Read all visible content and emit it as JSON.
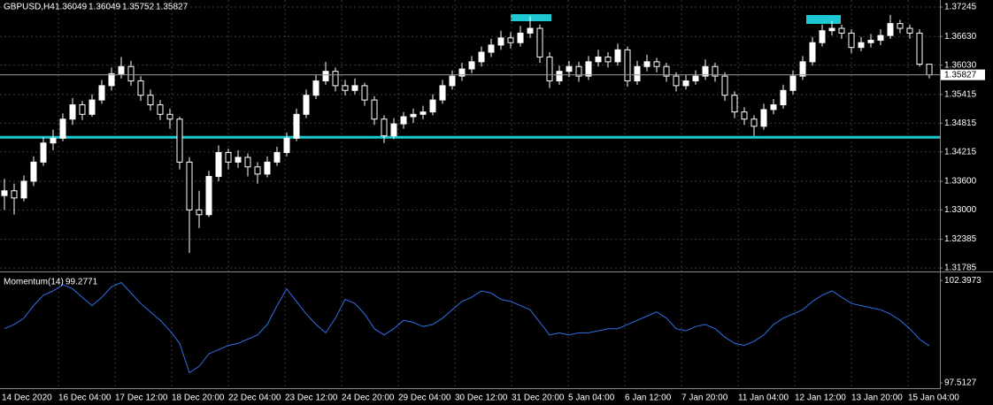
{
  "chart_data": [
    {
      "type": "candlestick",
      "title": "GBPUSD,H4",
      "bull_color": "#ffffff",
      "bear_color": "#000000",
      "wick_color": "#ffffff",
      "level_color": "#1ec8d2",
      "levels": [
        1.3452
      ],
      "ylim": [
        1.3173,
        1.37393
      ],
      "yticks": [
        1.37245,
        {
          "value": 1.3663,
          "label": "1.36630"
        },
        {
          "value": 1.3603,
          "label": "1.36030"
        },
        1.35415,
        1.34815,
        1.34215,
        {
          "value": 1.336,
          "label": "1.33600"
        },
        {
          "value": 1.33,
          "label": "1.33000"
        },
        1.32385,
        1.31785
      ],
      "grid": true,
      "xtick_labels": [
        "14 Dec 2020",
        "16 Dec 04:00",
        "17 Dec 12:00",
        "18 Dec 20:00",
        "22 Dec 04:00",
        "23 Dec 12:00",
        "24 Dec 20:00",
        "29 Dec 04:00",
        "30 Dec 12:00",
        "31 Dec 20:00",
        "5 Jan 04:00",
        "6 Jan 12:00",
        "7 Jan 20:00",
        "11 Jan 04:00",
        "12 Jan 12:00",
        "13 Jan 20:00",
        "15 Jan 04:00"
      ],
      "ohlc": [
        [
          1.333,
          1.3365,
          1.33,
          1.334
        ],
        [
          1.334,
          1.3355,
          1.329,
          1.3325
        ],
        [
          1.3325,
          1.3372,
          1.3318,
          1.336
        ],
        [
          1.336,
          1.3412,
          1.335,
          1.34
        ],
        [
          1.34,
          1.3452,
          1.3392,
          1.344
        ],
        [
          1.344,
          1.3468,
          1.3425,
          1.345
        ],
        [
          1.345,
          1.3502,
          1.3444,
          1.349
        ],
        [
          1.349,
          1.3534,
          1.3478,
          1.352
        ],
        [
          1.352,
          1.3528,
          1.3488,
          1.35
        ],
        [
          1.35,
          1.3542,
          1.3495,
          1.353
        ],
        [
          1.353,
          1.3572,
          1.3522,
          1.356
        ],
        [
          1.356,
          1.3598,
          1.355,
          1.3585
        ],
        [
          1.3585,
          1.362,
          1.3575,
          1.36
        ],
        [
          1.36,
          1.3612,
          1.356,
          1.357
        ],
        [
          1.357,
          1.358,
          1.3528,
          1.354
        ],
        [
          1.354,
          1.3552,
          1.3508,
          1.352
        ],
        [
          1.352,
          1.353,
          1.3488,
          1.35
        ],
        [
          1.35,
          1.3512,
          1.347,
          1.349
        ],
        [
          1.349,
          1.3495,
          1.3385,
          1.34
        ],
        [
          1.34,
          1.341,
          1.321,
          1.33
        ],
        [
          1.33,
          1.334,
          1.3262,
          1.329
        ],
        [
          1.329,
          1.3382,
          1.3285,
          1.337
        ],
        [
          1.337,
          1.3435,
          1.336,
          1.342
        ],
        [
          1.342,
          1.3428,
          1.3385,
          1.34
        ],
        [
          1.34,
          1.3425,
          1.3388,
          1.341
        ],
        [
          1.341,
          1.3418,
          1.337,
          1.339
        ],
        [
          1.339,
          1.34,
          1.3355,
          1.3375
        ],
        [
          1.3375,
          1.3412,
          1.3368,
          1.34
        ],
        [
          1.34,
          1.3432,
          1.3392,
          1.342
        ],
        [
          1.342,
          1.3462,
          1.3412,
          1.345
        ],
        [
          1.345,
          1.3512,
          1.3444,
          1.35
        ],
        [
          1.35,
          1.3552,
          1.3492,
          1.354
        ],
        [
          1.354,
          1.3582,
          1.3532,
          1.357
        ],
        [
          1.357,
          1.361,
          1.3562,
          1.359
        ],
        [
          1.359,
          1.3598,
          1.3548,
          1.356
        ],
        [
          1.356,
          1.3572,
          1.354,
          1.355
        ],
        [
          1.355,
          1.3575,
          1.3542,
          1.356
        ],
        [
          1.356,
          1.3566,
          1.3518,
          1.353
        ],
        [
          1.353,
          1.3538,
          1.3478,
          1.349
        ],
        [
          1.349,
          1.3498,
          1.344,
          1.3455
        ],
        [
          1.3455,
          1.3492,
          1.3448,
          1.348
        ],
        [
          1.348,
          1.3505,
          1.347,
          1.3495
        ],
        [
          1.3495,
          1.3512,
          1.3482,
          1.35
        ],
        [
          1.35,
          1.3518,
          1.349,
          1.3505
        ],
        [
          1.3505,
          1.3542,
          1.3498,
          1.353
        ],
        [
          1.353,
          1.3572,
          1.3522,
          1.356
        ],
        [
          1.356,
          1.3592,
          1.3552,
          1.358
        ],
        [
          1.358,
          1.3608,
          1.357,
          1.3595
        ],
        [
          1.3595,
          1.3622,
          1.3586,
          1.361
        ],
        [
          1.361,
          1.3642,
          1.36,
          1.363
        ],
        [
          1.363,
          1.3658,
          1.362,
          1.3645
        ],
        [
          1.3645,
          1.3675,
          1.3635,
          1.366
        ],
        [
          1.366,
          1.3672,
          1.3638,
          1.365
        ],
        [
          1.365,
          1.3685,
          1.3642,
          1.367
        ],
        [
          1.367,
          1.3705,
          1.366,
          1.368
        ],
        [
          1.368,
          1.3688,
          1.3608,
          1.362
        ],
        [
          1.362,
          1.363,
          1.3555,
          1.357
        ],
        [
          1.357,
          1.3602,
          1.3562,
          1.359
        ],
        [
          1.359,
          1.3612,
          1.3578,
          1.36
        ],
        [
          1.36,
          1.361,
          1.3568,
          1.358
        ],
        [
          1.358,
          1.3622,
          1.3572,
          1.361
        ],
        [
          1.361,
          1.3635,
          1.36,
          1.362
        ],
        [
          1.362,
          1.363,
          1.3598,
          1.361
        ],
        [
          1.361,
          1.3648,
          1.3602,
          1.3635
        ],
        [
          1.3635,
          1.3642,
          1.3558,
          1.357
        ],
        [
          1.357,
          1.3612,
          1.3562,
          1.36
        ],
        [
          1.36,
          1.3625,
          1.359,
          1.361
        ],
        [
          1.361,
          1.3618,
          1.3588,
          1.36
        ],
        [
          1.36,
          1.3608,
          1.3568,
          1.358
        ],
        [
          1.358,
          1.3588,
          1.3548,
          1.356
        ],
        [
          1.356,
          1.3582,
          1.3552,
          1.357
        ],
        [
          1.357,
          1.3592,
          1.3562,
          1.358
        ],
        [
          1.358,
          1.3615,
          1.3572,
          1.36
        ],
        [
          1.36,
          1.3608,
          1.3568,
          1.358
        ],
        [
          1.358,
          1.3588,
          1.3528,
          1.354
        ],
        [
          1.354,
          1.3548,
          1.3492,
          1.3505
        ],
        [
          1.3505,
          1.3515,
          1.3478,
          1.349
        ],
        [
          1.349,
          1.3498,
          1.3455,
          1.3475
        ],
        [
          1.3475,
          1.3522,
          1.3468,
          1.351
        ],
        [
          1.351,
          1.3532,
          1.35,
          1.352
        ],
        [
          1.352,
          1.3562,
          1.3512,
          1.355
        ],
        [
          1.355,
          1.3592,
          1.3542,
          1.358
        ],
        [
          1.358,
          1.3622,
          1.3572,
          1.361
        ],
        [
          1.361,
          1.3662,
          1.3602,
          1.365
        ],
        [
          1.365,
          1.3688,
          1.3642,
          1.3675
        ],
        [
          1.3675,
          1.3695,
          1.3665,
          1.368
        ],
        [
          1.368,
          1.3688,
          1.3658,
          1.367
        ],
        [
          1.367,
          1.3678,
          1.3628,
          1.364
        ],
        [
          1.364,
          1.3662,
          1.3632,
          1.365
        ],
        [
          1.365,
          1.3668,
          1.364,
          1.3655
        ],
        [
          1.3655,
          1.3678,
          1.3645,
          1.3665
        ],
        [
          1.3665,
          1.3708,
          1.3658,
          1.369
        ],
        [
          1.369,
          1.3698,
          1.367,
          1.368
        ],
        [
          1.368,
          1.3688,
          1.3658,
          1.367
        ],
        [
          1.367,
          1.3678,
          1.36,
          1.3605
        ],
        [
          1.36049,
          1.36049,
          1.35752,
          1.35827
        ]
      ]
    },
    {
      "type": "line",
      "title": "Momentum(14)",
      "color": "#2f6fe6",
      "ylim": [
        97.26,
        102.66
      ],
      "yticks": [
        102.3973,
        97.5127
      ],
      "values": [
        100.1,
        100.3,
        100.6,
        101.2,
        101.7,
        101.9,
        102.2,
        102.0,
        101.6,
        101.2,
        101.6,
        102.1,
        102.3,
        101.8,
        101.3,
        100.9,
        100.5,
        100.0,
        99.4,
        98.0,
        98.3,
        98.9,
        99.1,
        99.3,
        99.4,
        99.6,
        99.8,
        100.3,
        101.2,
        102.0,
        101.4,
        100.8,
        100.3,
        99.9,
        100.6,
        101.5,
        101.3,
        100.8,
        100.1,
        99.8,
        100.1,
        100.5,
        100.4,
        100.2,
        100.3,
        100.6,
        101.0,
        101.4,
        101.6,
        101.9,
        101.8,
        101.5,
        101.4,
        101.2,
        101.0,
        100.4,
        99.8,
        99.9,
        99.8,
        99.9,
        99.9,
        100.0,
        100.1,
        100.1,
        100.3,
        100.5,
        100.7,
        100.9,
        100.6,
        100.1,
        100.0,
        100.2,
        100.3,
        100.1,
        99.7,
        99.4,
        99.3,
        99.5,
        99.8,
        100.3,
        100.6,
        100.8,
        101.0,
        101.4,
        101.7,
        101.9,
        101.6,
        101.3,
        101.2,
        101.1,
        101.0,
        100.8,
        100.5,
        100.1,
        99.6,
        99.2771
      ]
    }
  ]
}
